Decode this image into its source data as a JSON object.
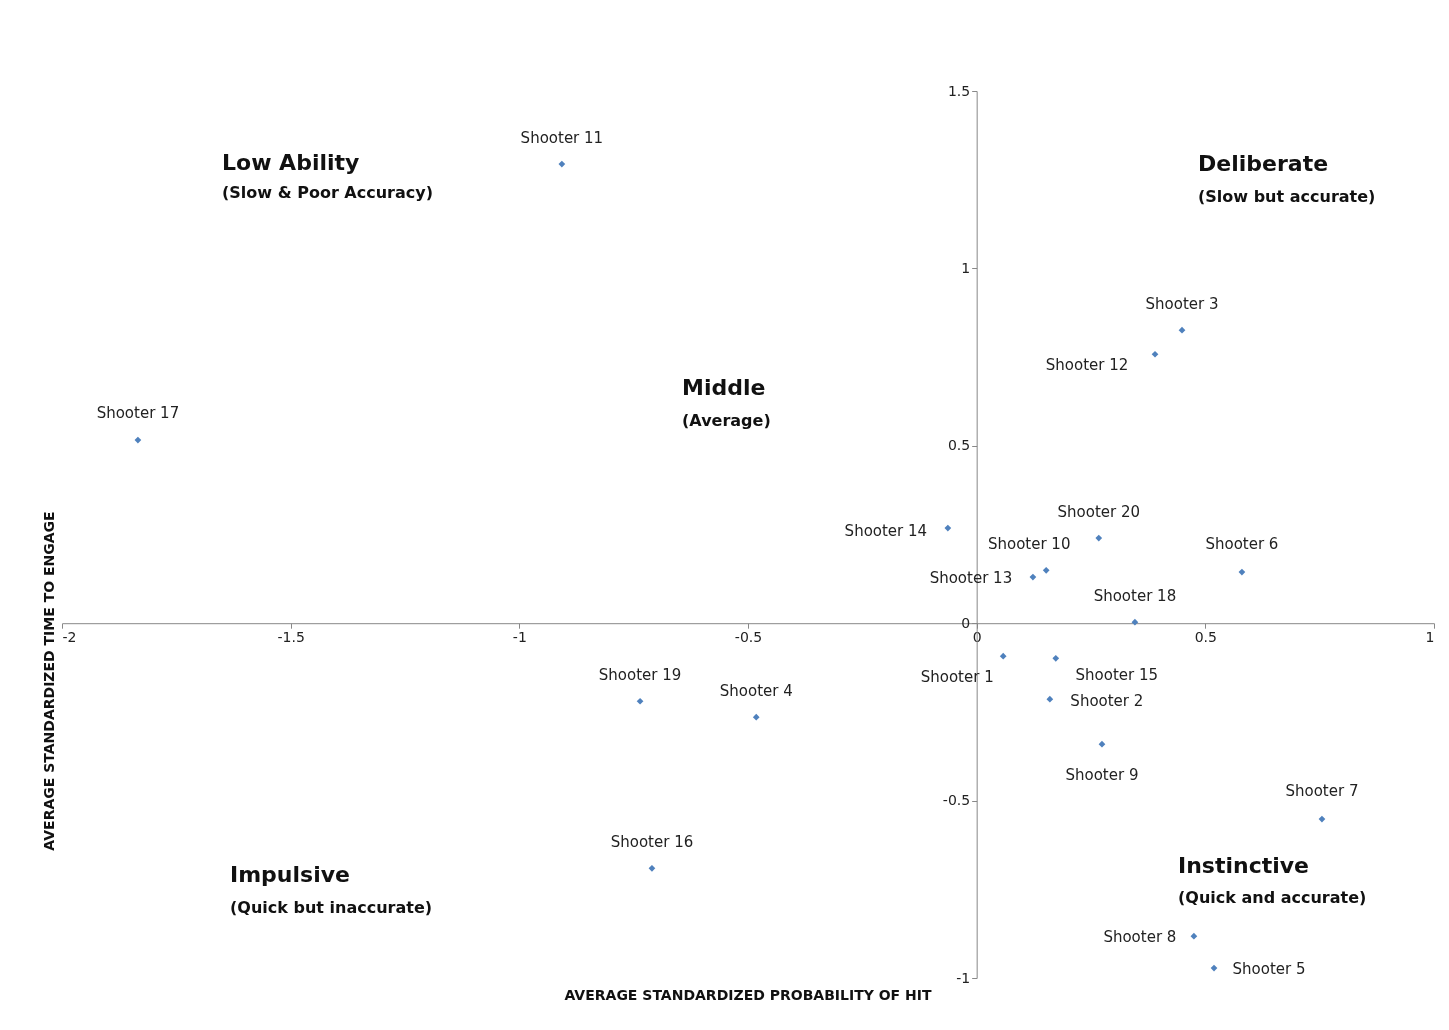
{
  "chart_data": {
    "type": "scatter",
    "xlabel": "AVERAGE STANDARDIZED  PROBABILITY  OF HIT",
    "ylabel": "AVERAGE STANDARDIZED  TIME TO ENGAGE",
    "x": [
      0.058,
      0.16,
      0.449,
      -0.482,
      0.519,
      0.58,
      0.755,
      0.475,
      0.274,
      0.152,
      -0.907,
      0.39,
      0.123,
      -0.063,
      0.173,
      -0.71,
      -1.834,
      0.346,
      -0.736,
      0.267
    ],
    "series": [
      {
        "color": "#4f81bd",
        "values": [
          -0.093,
          -0.214,
          0.826,
          -0.265,
          -0.972,
          0.144,
          -0.552,
          -0.882,
          -0.341,
          0.149,
          1.294,
          0.758,
          0.13,
          0.268,
          -0.099,
          -0.691,
          0.516,
          0.003,
          -0.22,
          0.24
        ],
        "value_labels": [
          "Shooter 1",
          "Shooter 2",
          "Shooter 3",
          "Shooter 4",
          "Shooter 5",
          "Shooter 6",
          "Shooter 7",
          "Shooter 8",
          "Shooter 9",
          "Shooter 10",
          "Shooter 11",
          "Shooter 12",
          "Shooter 13",
          "Shooter 14",
          "Shooter 15",
          "Shooter 16",
          "Shooter 17",
          "Shooter 18",
          "Shooter 19",
          "Shooter 20"
        ]
      }
    ],
    "marker": "diamond",
    "xlim": [
      -2,
      1
    ],
    "ylim": [
      -1,
      1.5
    ],
    "xticks": [
      -2,
      -1.5,
      -1,
      -0.5,
      0,
      0.5,
      1
    ],
    "yticks": [
      -1,
      -0.5,
      0,
      0.5,
      1,
      1.5
    ],
    "grid": false,
    "annotations": [
      "Low Ability",
      "(Slow & Poor Accuracy)",
      "Deliberate",
      "(Slow but accurate)",
      "Middle",
      "(Average)",
      "Impulsive",
      "(Quick but inaccurate)",
      "Instinctive",
      "(Quick and accurate)"
    ]
  }
}
